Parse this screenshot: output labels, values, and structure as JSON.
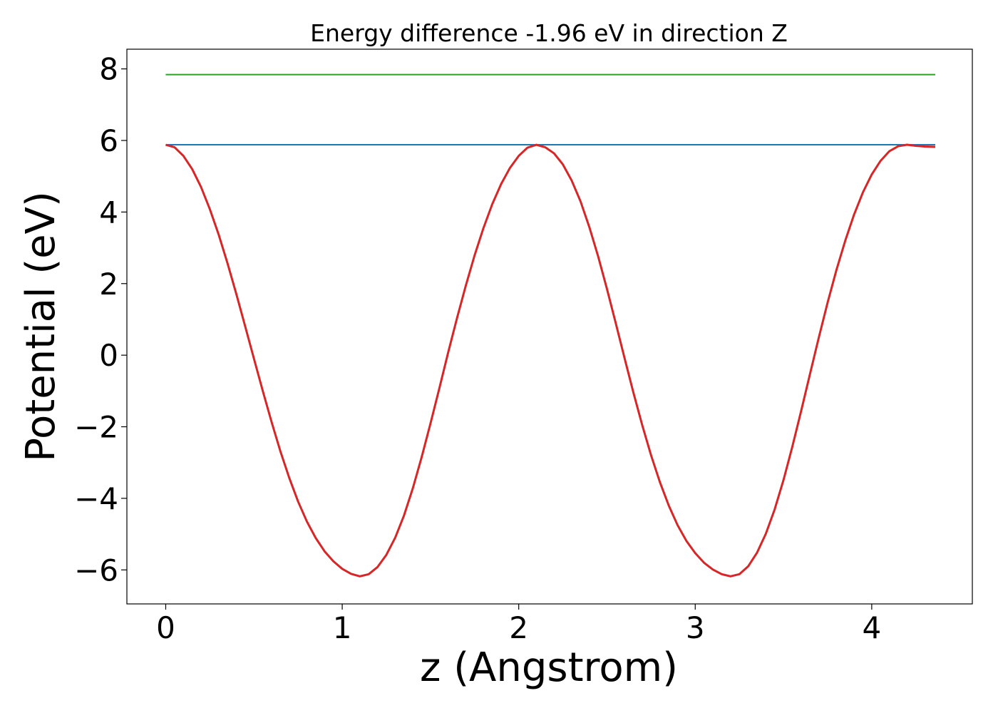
{
  "chart_data": {
    "type": "line",
    "title": "Energy difference -1.96 eV in direction Z",
    "xlabel": "z (Angstrom)",
    "ylabel": "Potential (eV)",
    "xlim": [
      -0.22,
      4.57
    ],
    "ylim": [
      -6.95,
      8.55
    ],
    "xticks": [
      0,
      1,
      2,
      3,
      4
    ],
    "xtick_labels": [
      "0",
      "1",
      "2",
      "3",
      "4"
    ],
    "yticks": [
      -6,
      -4,
      -2,
      0,
      2,
      4,
      6,
      8
    ],
    "ytick_labels": [
      "−6",
      "−4",
      "−2",
      "0",
      "2",
      "4",
      "6",
      "8"
    ],
    "grid": false,
    "legend": "none",
    "series": [
      {
        "color": "#2ca02c",
        "x": [
          0.0,
          4.36
        ],
        "y": [
          7.84,
          7.84
        ]
      },
      {
        "color": "#1f77b4",
        "x": [
          0.0,
          4.36
        ],
        "y": [
          5.88,
          5.88
        ]
      },
      {
        "color": "#d62728",
        "x": [
          0.0,
          0.05,
          0.1,
          0.15,
          0.2,
          0.25,
          0.3,
          0.35,
          0.4,
          0.45,
          0.5,
          0.55,
          0.6,
          0.65,
          0.7,
          0.75,
          0.8,
          0.85,
          0.9,
          0.95,
          1.0,
          1.05,
          1.1,
          1.15,
          1.2,
          1.25,
          1.3,
          1.35,
          1.4,
          1.45,
          1.5,
          1.55,
          1.6,
          1.65,
          1.7,
          1.75,
          1.8,
          1.85,
          1.9,
          1.95,
          2.0,
          2.05,
          2.1,
          2.15,
          2.2,
          2.25,
          2.3,
          2.35,
          2.4,
          2.45,
          2.5,
          2.55,
          2.6,
          2.65,
          2.7,
          2.75,
          2.8,
          2.85,
          2.9,
          2.95,
          3.0,
          3.05,
          3.1,
          3.15,
          3.2,
          3.25,
          3.3,
          3.35,
          3.4,
          3.45,
          3.5,
          3.55,
          3.6,
          3.65,
          3.7,
          3.75,
          3.8,
          3.85,
          3.9,
          3.95,
          4.0,
          4.05,
          4.1,
          4.15,
          4.2,
          4.25,
          4.3,
          4.36
        ],
        "y": [
          5.88,
          5.81,
          5.57,
          5.2,
          4.7,
          4.08,
          3.37,
          2.57,
          1.71,
          0.81,
          -0.1,
          -1.0,
          -1.87,
          -2.69,
          -3.43,
          -4.09,
          -4.65,
          -5.11,
          -5.48,
          -5.76,
          -5.97,
          -6.11,
          -6.18,
          -6.12,
          -5.92,
          -5.58,
          -5.1,
          -4.48,
          -3.72,
          -2.85,
          -1.91,
          -0.93,
          0.07,
          1.03,
          1.94,
          2.79,
          3.55,
          4.22,
          4.78,
          5.23,
          5.57,
          5.8,
          5.88,
          5.81,
          5.64,
          5.33,
          4.88,
          4.3,
          3.58,
          2.76,
          1.85,
          0.89,
          -0.09,
          -1.05,
          -1.96,
          -2.8,
          -3.55,
          -4.2,
          -4.75,
          -5.19,
          -5.53,
          -5.8,
          -5.99,
          -6.12,
          -6.18,
          -6.12,
          -5.9,
          -5.52,
          -4.99,
          -4.31,
          -3.49,
          -2.56,
          -1.56,
          -0.53,
          0.49,
          1.47,
          2.38,
          3.2,
          3.93,
          4.55,
          5.05,
          5.43,
          5.7,
          5.84,
          5.88,
          5.85,
          5.83,
          5.82
        ]
      }
    ]
  }
}
